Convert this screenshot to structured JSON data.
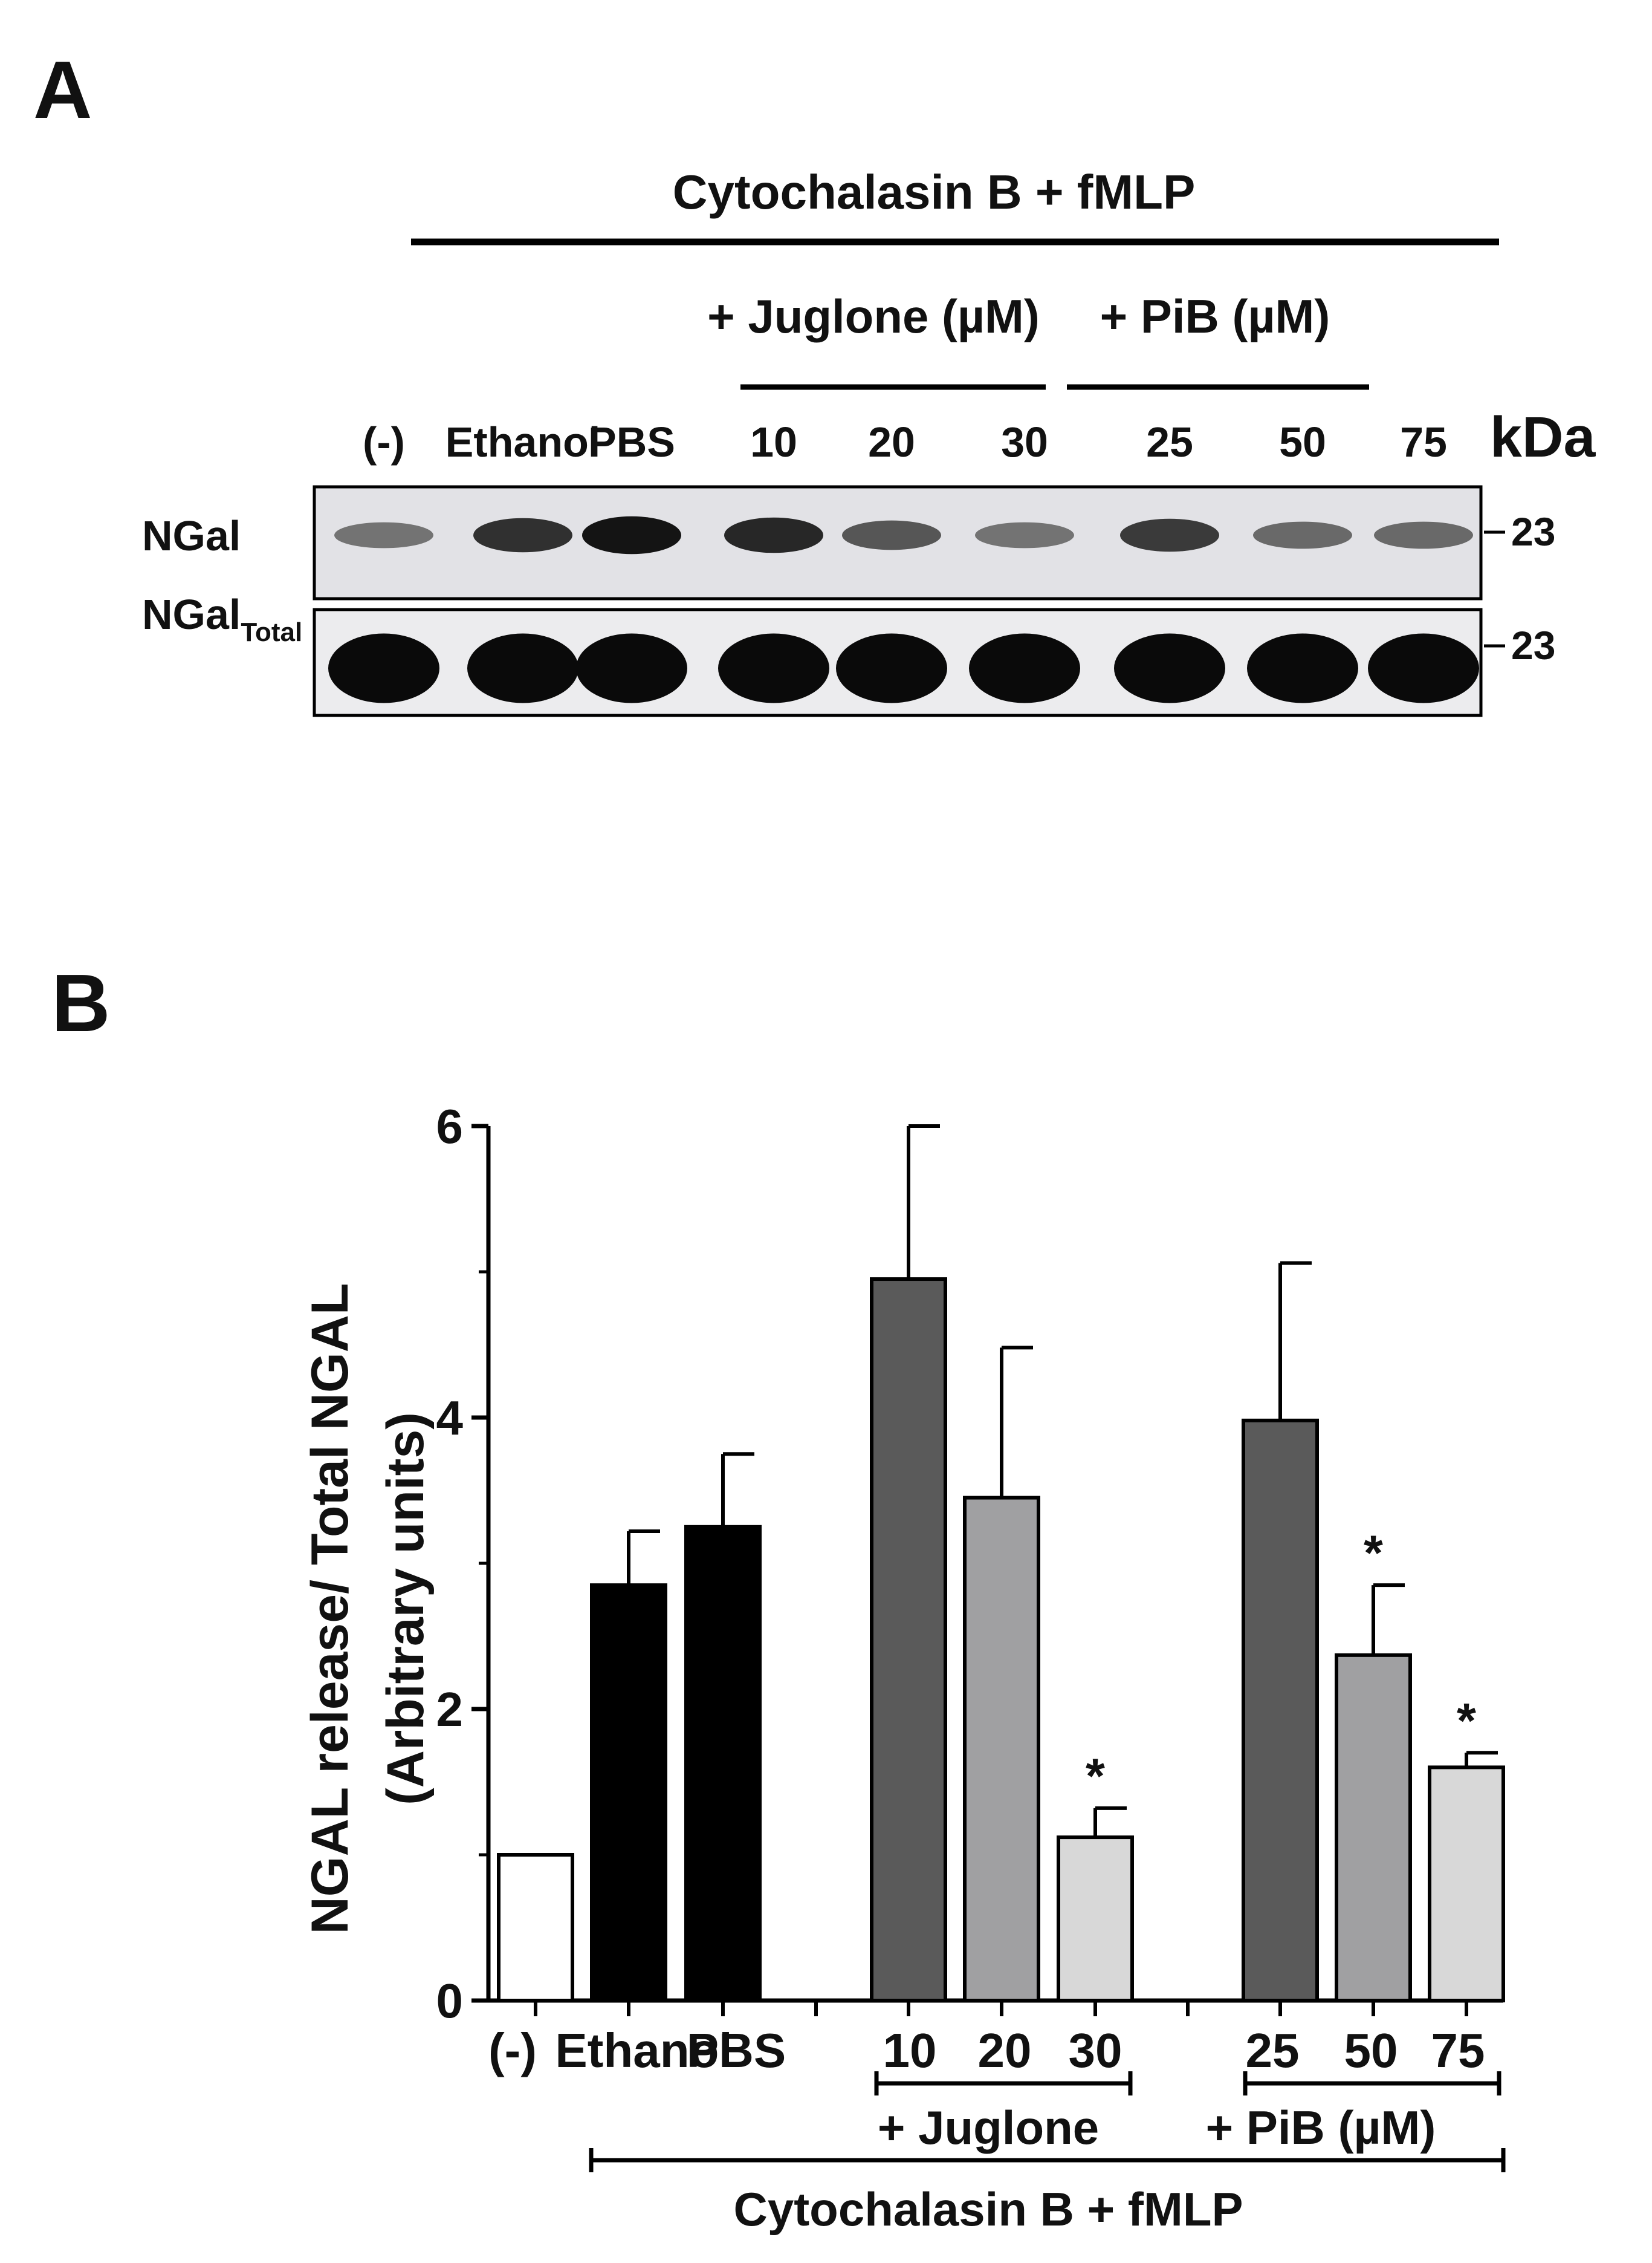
{
  "panel_a": {
    "letter": "A",
    "header": "Cytochalasin B + fMLP",
    "group_juglone": "+ Juglone (µM)",
    "group_pib": "+ PiB (µM)",
    "lanes": [
      "(-)",
      "Ethanol",
      "PBS",
      "10",
      "20",
      "30",
      "25",
      "50",
      "75"
    ],
    "kda_label": "kDa",
    "blot_rows": [
      {
        "label": "NGal",
        "sub": "",
        "marker": "23",
        "intensity": [
          0.45,
          0.8,
          0.95,
          0.85,
          0.6,
          0.45,
          0.75,
          0.5,
          0.5
        ]
      },
      {
        "label": "NGal",
        "sub": "Total",
        "marker": "23",
        "intensity": [
          1,
          1,
          1,
          1,
          1,
          1,
          1,
          1,
          1
        ]
      }
    ]
  },
  "panel_b": {
    "letter": "B",
    "group_juglone": "+ Juglone",
    "group_pib": "+ PiB (µM)",
    "footer": "Cytochalasin B + fMLP"
  },
  "chart_data": {
    "type": "bar",
    "categories": [
      "(-)",
      "Ethanol",
      "PBS",
      "10",
      "20",
      "30",
      "25",
      "50",
      "75"
    ],
    "values": [
      1.0,
      2.85,
      3.25,
      4.95,
      3.45,
      1.12,
      3.98,
      2.37,
      1.6
    ],
    "errors": [
      0,
      0.37,
      0.5,
      1.05,
      1.03,
      0.2,
      1.08,
      0.48,
      0.1
    ],
    "significant": [
      false,
      false,
      false,
      false,
      false,
      true,
      false,
      true,
      true
    ],
    "colors": [
      "#ffffff",
      "#000000",
      "#000000",
      "#5a5a5a",
      "#a0a0a2",
      "#d8d8d8",
      "#5a5a5a",
      "#a0a0a2",
      "#d8d8d8"
    ],
    "significance_mark": "*",
    "ylabel": "NGAL release/ Total NGAL",
    "ylabel2": "(Arbitrary units)",
    "yticks": [
      "0",
      "2",
      "4",
      "6"
    ],
    "ylim": [
      0,
      6
    ],
    "grid": false
  }
}
